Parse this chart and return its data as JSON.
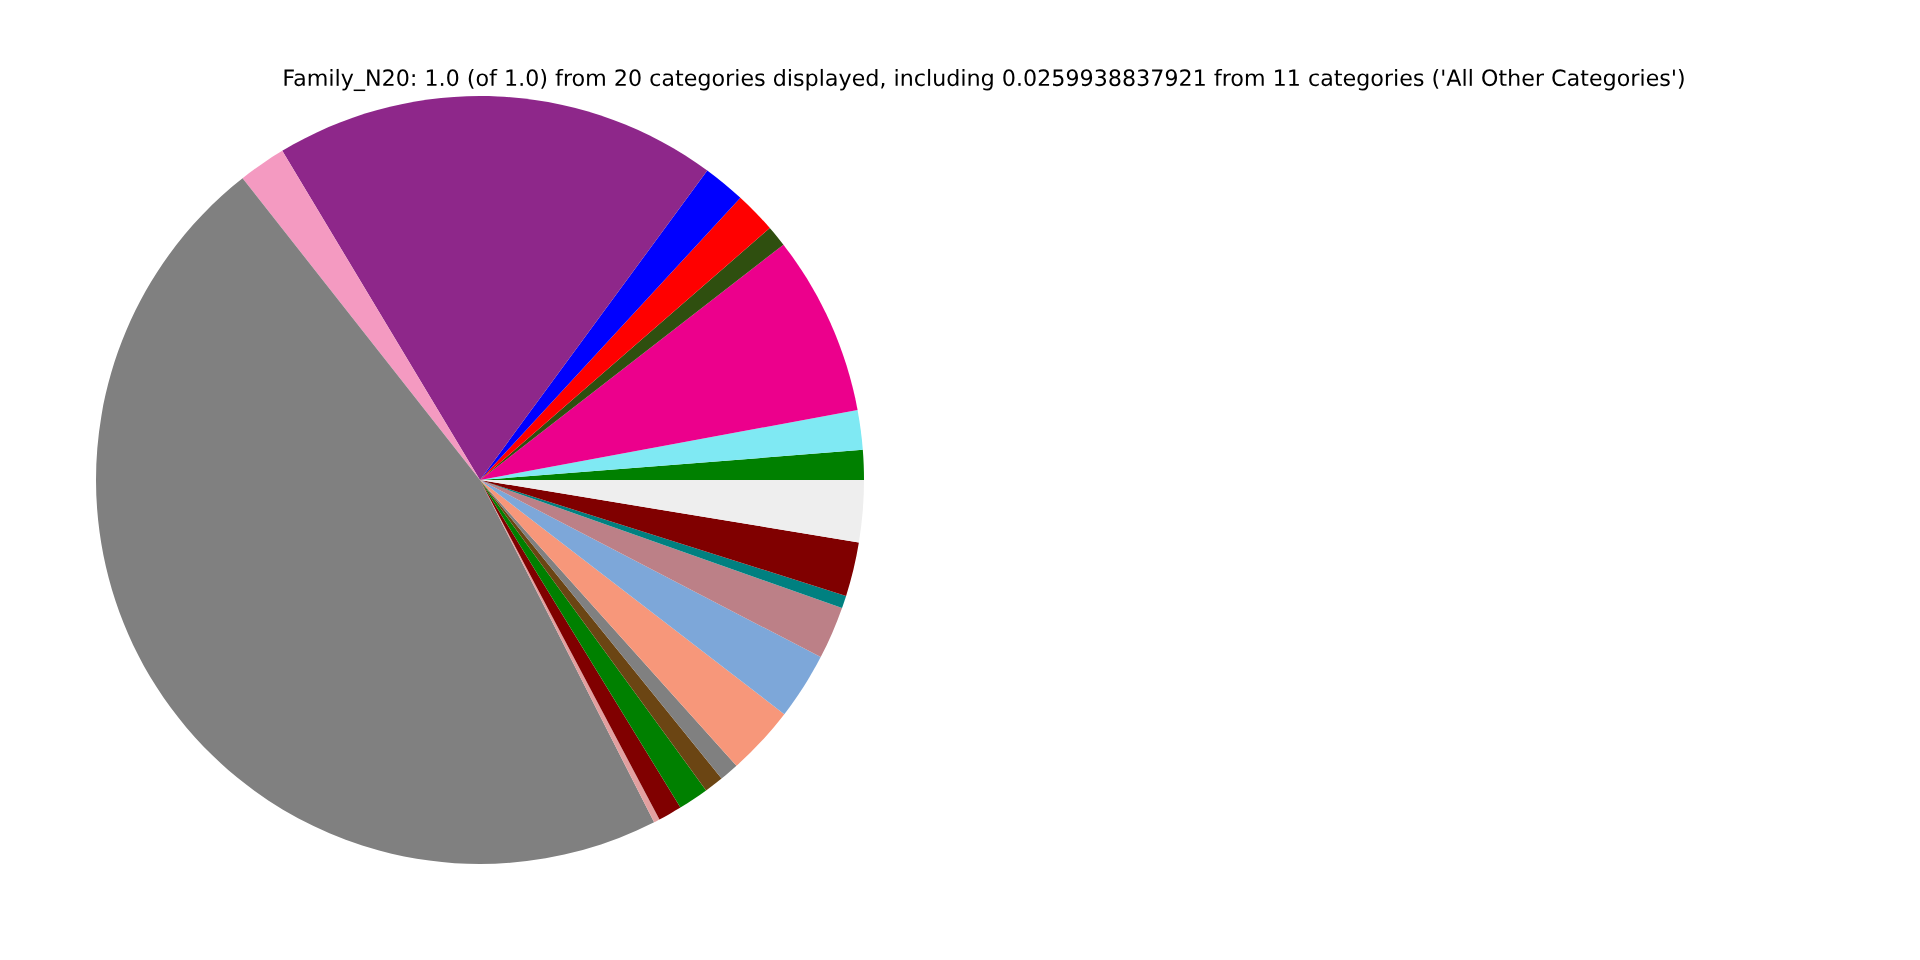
{
  "chart_data": {
    "type": "pie",
    "title": "Family_N20: 1.0 (of 1.0) from 20 categories displayed, including 0.0259938837921 from 11 categories ('All Other Categories')",
    "categories": [
      null,
      null,
      null,
      null,
      null,
      null,
      null,
      null,
      null,
      null,
      null,
      null,
      null,
      null,
      null,
      null,
      null,
      null,
      null,
      null
    ],
    "values": [
      1.25,
      1.67,
      7.58,
      0.89,
      1.75,
      1.78,
      18.69,
      2.0,
      46.88,
      0.25,
      1.0,
      1.28,
      0.81,
      0.81,
      2.92,
      2.81,
      2.22,
      0.53,
      2.28,
      2.6
    ],
    "colors": [
      "#008000",
      "#7fe9f3",
      "#ec008c",
      "#2f4f0f",
      "#ff0000",
      "#0000ff",
      "#8e278a",
      "#f49ac1",
      "#808080",
      "#e3a0a0",
      "#800000",
      "#008000",
      "#6b4513",
      "#808080",
      "#f7977a",
      "#7da7d9",
      "#bc8087",
      "#008080",
      "#800000",
      "#eeeeee"
    ]
  }
}
